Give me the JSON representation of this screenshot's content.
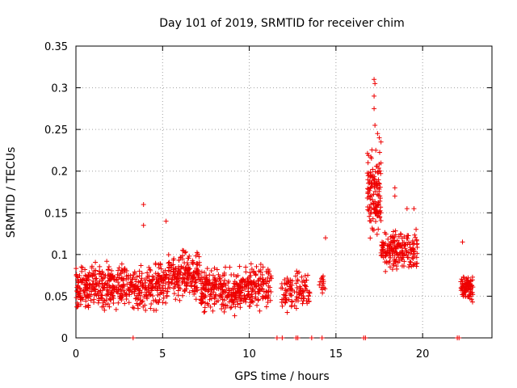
{
  "chart_data": {
    "type": "scatter",
    "title": "Day 101 of 2019, SRMTID for receiver chim",
    "xlabel": "GPS time / hours",
    "ylabel": "SRMTID / TECUs",
    "xlim": [
      0,
      24
    ],
    "ylim": [
      0,
      0.35
    ],
    "xticks": [
      0,
      5,
      10,
      15,
      20
    ],
    "xtick_labels": [
      "0",
      "5",
      "10",
      "15",
      "20"
    ],
    "yticks": [
      0,
      0.05,
      0.1,
      0.15,
      0.2,
      0.25,
      0.3,
      0.35
    ],
    "ytick_labels": [
      "0",
      "0.05",
      "0.1",
      "0.15",
      "0.2",
      "0.25",
      "0.3",
      "0.35"
    ],
    "grid": true,
    "marker": "+",
    "marker_color": "#ee0000",
    "series": [
      {
        "name": "SRMTID",
        "clusters": [
          {
            "x_start": 0.0,
            "x_end": 5.3,
            "y_center": 0.062,
            "y_spread": 0.024,
            "n": 520
          },
          {
            "x_start": 5.3,
            "x_end": 7.2,
            "y_center": 0.075,
            "y_spread": 0.023,
            "n": 200
          },
          {
            "x_start": 7.2,
            "x_end": 9.5,
            "y_center": 0.057,
            "y_spread": 0.022,
            "n": 240
          },
          {
            "x_start": 9.5,
            "x_end": 11.3,
            "y_center": 0.063,
            "y_spread": 0.022,
            "n": 160
          },
          {
            "x_start": 11.8,
            "x_end": 12.5,
            "y_center": 0.055,
            "y_spread": 0.02,
            "n": 50
          },
          {
            "x_start": 12.6,
            "x_end": 13.5,
            "y_center": 0.058,
            "y_spread": 0.02,
            "n": 60
          },
          {
            "x_start": 14.0,
            "x_end": 14.4,
            "y_center": 0.065,
            "y_spread": 0.015,
            "n": 15
          },
          {
            "x_start": 16.8,
            "x_end": 17.6,
            "y_center": 0.17,
            "y_spread": 0.04,
            "n": 130
          },
          {
            "x_start": 17.6,
            "x_end": 19.7,
            "y_center": 0.105,
            "y_spread": 0.02,
            "n": 200
          },
          {
            "x_start": 22.2,
            "x_end": 22.9,
            "y_center": 0.06,
            "y_spread": 0.015,
            "n": 90
          }
        ],
        "peaks": [
          {
            "x": 3.9,
            "y": 0.16
          },
          {
            "x": 3.9,
            "y": 0.135
          },
          {
            "x": 5.2,
            "y": 0.14
          },
          {
            "x": 17.2,
            "y": 0.31
          },
          {
            "x": 17.25,
            "y": 0.305
          },
          {
            "x": 17.2,
            "y": 0.29
          },
          {
            "x": 17.2,
            "y": 0.275
          },
          {
            "x": 17.25,
            "y": 0.255
          },
          {
            "x": 17.4,
            "y": 0.245
          },
          {
            "x": 17.5,
            "y": 0.24
          },
          {
            "x": 17.6,
            "y": 0.235
          },
          {
            "x": 17.3,
            "y": 0.225
          },
          {
            "x": 18.4,
            "y": 0.18
          },
          {
            "x": 18.4,
            "y": 0.17
          },
          {
            "x": 19.1,
            "y": 0.155
          },
          {
            "x": 19.5,
            "y": 0.155
          },
          {
            "x": 14.4,
            "y": 0.12
          },
          {
            "x": 22.3,
            "y": 0.115
          }
        ],
        "zero_points": [
          {
            "x": 3.3,
            "y": 0
          },
          {
            "x": 11.6,
            "y": 0
          },
          {
            "x": 11.9,
            "y": 0
          },
          {
            "x": 12.7,
            "y": 0
          },
          {
            "x": 12.8,
            "y": 0
          },
          {
            "x": 13.6,
            "y": 0
          },
          {
            "x": 14.2,
            "y": 0
          },
          {
            "x": 16.6,
            "y": 0
          },
          {
            "x": 16.7,
            "y": 0
          },
          {
            "x": 22.0,
            "y": 0
          },
          {
            "x": 22.1,
            "y": 0
          }
        ]
      }
    ]
  }
}
